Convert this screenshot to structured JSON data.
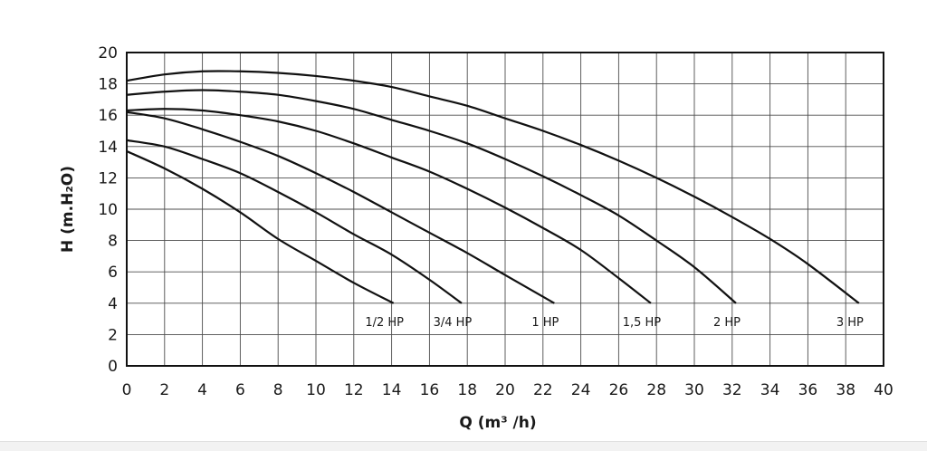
{
  "chart_data": {
    "type": "line",
    "title": "",
    "xlabel": "Q (m³ /h)",
    "ylabel": "H (m.H₂O)",
    "xlim": [
      0,
      40
    ],
    "ylim": [
      0,
      20
    ],
    "grid": true,
    "legend": "none",
    "x_ticks": [
      0,
      2,
      4,
      6,
      8,
      10,
      12,
      14,
      16,
      18,
      20,
      22,
      24,
      26,
      28,
      30,
      32,
      34,
      36,
      38,
      40
    ],
    "y_ticks": [
      0,
      2,
      4,
      6,
      8,
      10,
      12,
      14,
      16,
      18,
      20
    ],
    "series": [
      {
        "name": "1/2 HP",
        "x": [
          0,
          2,
          4,
          6,
          8,
          10,
          12,
          14.1
        ],
        "y": [
          13.7,
          12.6,
          11.3,
          9.8,
          8.1,
          6.7,
          5.3,
          4.0
        ]
      },
      {
        "name": "3/4 HP",
        "x": [
          0,
          2,
          4,
          6,
          8,
          10,
          12,
          14,
          16,
          17.7
        ],
        "y": [
          14.4,
          14.0,
          13.2,
          12.3,
          11.1,
          9.8,
          8.4,
          7.1,
          5.5,
          4.0
        ]
      },
      {
        "name": "1 HP",
        "x": [
          0,
          2,
          4,
          6,
          8,
          10,
          12,
          14,
          16,
          18,
          20,
          22.6
        ],
        "y": [
          16.2,
          15.8,
          15.1,
          14.3,
          13.4,
          12.3,
          11.1,
          9.8,
          8.5,
          7.2,
          5.8,
          4.0
        ]
      },
      {
        "name": "1,5 HP",
        "x": [
          0,
          2,
          4,
          6,
          8,
          10,
          12,
          14,
          16,
          18,
          20,
          22,
          24,
          26,
          27.7
        ],
        "y": [
          16.3,
          16.4,
          16.3,
          16.0,
          15.6,
          15.0,
          14.2,
          13.3,
          12.4,
          11.3,
          10.1,
          8.8,
          7.4,
          5.6,
          4.0
        ]
      },
      {
        "name": "2 HP",
        "x": [
          0,
          2,
          4,
          6,
          8,
          10,
          12,
          14,
          16,
          18,
          20,
          22,
          24,
          26,
          28,
          30,
          32.2
        ],
        "y": [
          17.3,
          17.5,
          17.6,
          17.5,
          17.3,
          16.9,
          16.4,
          15.7,
          15.0,
          14.2,
          13.2,
          12.1,
          10.9,
          9.6,
          8.0,
          6.3,
          4.0
        ]
      },
      {
        "name": "3 HP",
        "x": [
          0,
          2,
          4,
          6,
          8,
          10,
          12,
          14,
          16,
          18,
          20,
          22,
          24,
          26,
          28,
          30,
          32,
          34,
          36,
          38.7
        ],
        "y": [
          18.2,
          18.6,
          18.8,
          18.8,
          18.7,
          18.5,
          18.2,
          17.8,
          17.2,
          16.6,
          15.8,
          15.0,
          14.1,
          13.1,
          12.0,
          10.8,
          9.5,
          8.1,
          6.5,
          4.0
        ]
      }
    ]
  }
}
